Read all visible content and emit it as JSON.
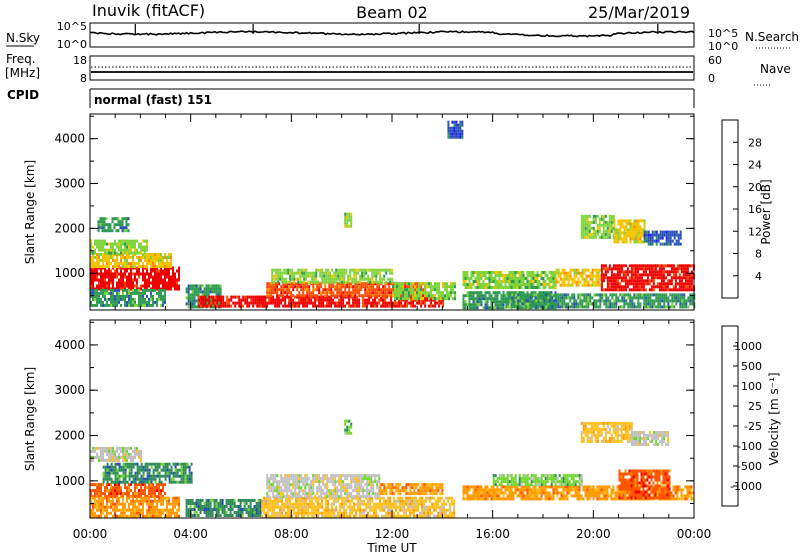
{
  "header": {
    "station": "Inuvik (fitACF)",
    "beam": "Beam 02",
    "date": "25/Mar/2019"
  },
  "strips": {
    "nsky": {
      "left_label": "N.Sky",
      "left_top": "10^5",
      "left_bottom": "10^0",
      "right_top": "10^5",
      "right_bottom": "10^0",
      "right_label": "N.Search"
    },
    "freq": {
      "left_label_1": "Freq.",
      "left_label_2": "[MHz]",
      "left_top": "18",
      "left_bottom": "8",
      "right_top": "60",
      "right_bottom": "0",
      "right_label": "Nave"
    },
    "cpid": {
      "left_label": "CPID",
      "mode_text": "normal (fast) 151"
    }
  },
  "colors": {
    "power": [
      "#1a1aff",
      "#2a52b8",
      "#2e9a52",
      "#7fd33b",
      "#f5c400",
      "#ff8c00",
      "#ff4a00",
      "#ee0000"
    ],
    "velocity": [
      "#ee0000",
      "#ff5500",
      "#ff9a00",
      "#ffbf1a",
      "#c0c0c0",
      "#6fd62e",
      "#2e8b57",
      "#1f4fa8"
    ]
  },
  "chart_data": [
    {
      "type": "heatmap",
      "panel": "power",
      "title": "",
      "xlabel": "",
      "ylabel": "Slant Range [km]",
      "xlim": [
        0,
        24
      ],
      "ylim": [
        180,
        4550
      ],
      "yticks": [
        "1000",
        "2000",
        "3000",
        "4000"
      ],
      "colorbar": {
        "label": "Power [dB]",
        "ticks": [
          "4",
          "8",
          "12",
          "16",
          "20",
          "24",
          "28"
        ],
        "range": [
          0,
          30
        ]
      },
      "regions": [
        {
          "t0": 0.0,
          "t1": 3.5,
          "r0": 650,
          "r1": 1150,
          "level": 7
        },
        {
          "t0": 0.0,
          "t1": 3.2,
          "r0": 1150,
          "r1": 1450,
          "level": 4
        },
        {
          "t0": 0.0,
          "t1": 2.3,
          "r0": 1450,
          "r1": 1750,
          "level": 3
        },
        {
          "t0": 0.0,
          "t1": 3.0,
          "r0": 250,
          "r1": 650,
          "level": 2
        },
        {
          "t0": 0.3,
          "t1": 1.5,
          "r0": 1950,
          "r1": 2250,
          "level": 2
        },
        {
          "t0": 3.8,
          "t1": 5.2,
          "r0": 250,
          "r1": 750,
          "level": 2
        },
        {
          "t0": 4.3,
          "t1": 7.0,
          "r0": 250,
          "r1": 500,
          "level": 7
        },
        {
          "t0": 6.6,
          "t1": 14.0,
          "r0": 250,
          "r1": 500,
          "level": 7
        },
        {
          "t0": 7.0,
          "t1": 13.3,
          "r0": 500,
          "r1": 800,
          "level": 6
        },
        {
          "t0": 7.2,
          "t1": 12.0,
          "r0": 800,
          "r1": 1100,
          "level": 3
        },
        {
          "t0": 12.0,
          "t1": 14.5,
          "r0": 450,
          "r1": 800,
          "level": 3
        },
        {
          "t0": 14.8,
          "t1": 18.5,
          "r0": 700,
          "r1": 1050,
          "level": 3
        },
        {
          "t0": 14.8,
          "t1": 18.5,
          "r0": 250,
          "r1": 600,
          "level": 2
        },
        {
          "t0": 18.5,
          "t1": 20.3,
          "r0": 700,
          "r1": 1100,
          "level": 4
        },
        {
          "t0": 20.3,
          "t1": 24.0,
          "r0": 600,
          "r1": 1200,
          "level": 7
        },
        {
          "t0": 16.5,
          "t1": 24.0,
          "r0": 250,
          "r1": 550,
          "level": 2
        },
        {
          "t0": 19.5,
          "t1": 20.8,
          "r0": 1800,
          "r1": 2300,
          "level": 3
        },
        {
          "t0": 20.8,
          "t1": 22.0,
          "r0": 1700,
          "r1": 2200,
          "level": 4
        },
        {
          "t0": 22.0,
          "t1": 23.5,
          "r0": 1650,
          "r1": 1950,
          "level": 1
        },
        {
          "t0": 10.1,
          "t1": 10.4,
          "r0": 2050,
          "r1": 2350,
          "level": 3
        },
        {
          "t0": 14.2,
          "t1": 14.8,
          "r0": 4000,
          "r1": 4400,
          "level": 1
        }
      ]
    },
    {
      "type": "heatmap",
      "panel": "velocity",
      "title": "",
      "xlabel": "Time UT",
      "ylabel": "Slant Range [km]",
      "xlim": [
        0,
        24
      ],
      "ylim": [
        180,
        4550
      ],
      "xticks": [
        "00:00",
        "04:00",
        "08:00",
        "12:00",
        "16:00",
        "20:00",
        "00:00"
      ],
      "yticks": [
        "1000",
        "2000",
        "3000",
        "4000"
      ],
      "colorbar": {
        "label": "Velocity [m s⁻¹]",
        "ticks": [
          "-1000",
          "-500",
          "-100",
          "-25",
          "25",
          "100",
          "500",
          "1000"
        ],
        "range": [
          -1200,
          1200
        ]
      },
      "regions": [
        {
          "t0": 0.0,
          "t1": 3.0,
          "r0": 650,
          "r1": 950,
          "level": 1
        },
        {
          "t0": 0.5,
          "t1": 4.0,
          "r0": 950,
          "r1": 1400,
          "level": 6
        },
        {
          "t0": 0.0,
          "t1": 2.0,
          "r0": 1450,
          "r1": 1750,
          "level": 4
        },
        {
          "t0": 0.0,
          "t1": 3.5,
          "r0": 250,
          "r1": 650,
          "level": 2
        },
        {
          "t0": 3.8,
          "t1": 6.8,
          "r0": 250,
          "r1": 600,
          "level": 6
        },
        {
          "t0": 6.8,
          "t1": 14.5,
          "r0": 250,
          "r1": 650,
          "level": 3
        },
        {
          "t0": 7.0,
          "t1": 11.5,
          "r0": 650,
          "r1": 1150,
          "level": 4
        },
        {
          "t0": 11.5,
          "t1": 14.0,
          "r0": 700,
          "r1": 950,
          "level": 2
        },
        {
          "t0": 14.8,
          "t1": 24.0,
          "r0": 600,
          "r1": 900,
          "level": 2
        },
        {
          "t0": 16.0,
          "t1": 19.5,
          "r0": 900,
          "r1": 1150,
          "level": 5
        },
        {
          "t0": 21.0,
          "t1": 23.0,
          "r0": 600,
          "r1": 1250,
          "level": 1
        },
        {
          "t0": 19.5,
          "t1": 21.5,
          "r0": 1850,
          "r1": 2300,
          "level": 3
        },
        {
          "t0": 21.5,
          "t1": 23.0,
          "r0": 1800,
          "r1": 2100,
          "level": 4
        },
        {
          "t0": 10.1,
          "t1": 10.4,
          "r0": 2050,
          "r1": 2350,
          "level": 5
        }
      ]
    }
  ]
}
